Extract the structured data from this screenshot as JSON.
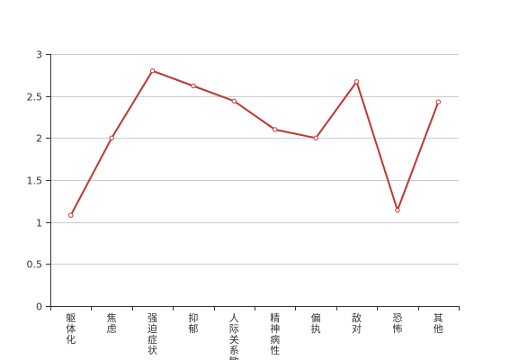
{
  "chart_data": {
    "type": "line",
    "categories": [
      "躯体化",
      "焦虑",
      "强迫症状",
      "抑郁",
      "人际关系敏感",
      "精神病性",
      "偏执",
      "敌对",
      "恐怖",
      "其他"
    ],
    "series": [
      {
        "values": [
          1.08,
          2.0,
          2.8,
          2.62,
          2.44,
          2.1,
          2.0,
          2.67,
          1.14,
          2.43
        ],
        "color": "#c23531"
      }
    ],
    "ylim": [
      0,
      3
    ],
    "yticks": [
      0,
      0.5,
      1,
      1.5,
      2,
      2.5,
      3
    ],
    "ytick_labels": [
      "0",
      "0.5",
      "1",
      "1.5",
      "2",
      "2.5",
      "3"
    ],
    "grid": true,
    "marker": "hollow-circle"
  }
}
